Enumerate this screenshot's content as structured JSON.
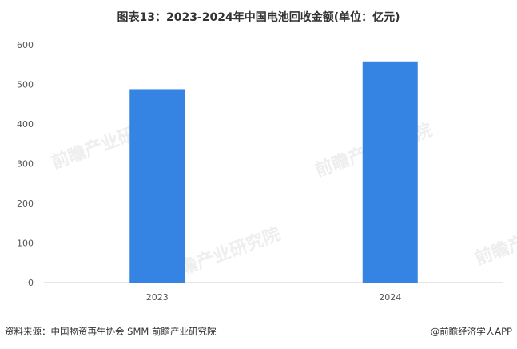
{
  "title": "图表13：2023-2024年中国电池回收金额(单位：亿元)",
  "watermark": "前瞻产业研究院",
  "footer": {
    "source": "资料来源：中国物资再生协会 SMM 前瞻产业研究院",
    "brand": "@前瞻经济学人APP"
  },
  "chart_data": {
    "type": "bar",
    "title": "图表13：2023-2024年中国电池回收金额(单位：亿元)",
    "categories": [
      "2023",
      "2024"
    ],
    "values": [
      488,
      558
    ],
    "ylim": [
      0,
      600
    ],
    "yticks": [
      0,
      100,
      200,
      300,
      400,
      500,
      600
    ],
    "grid": false,
    "color": "#3584e4"
  }
}
